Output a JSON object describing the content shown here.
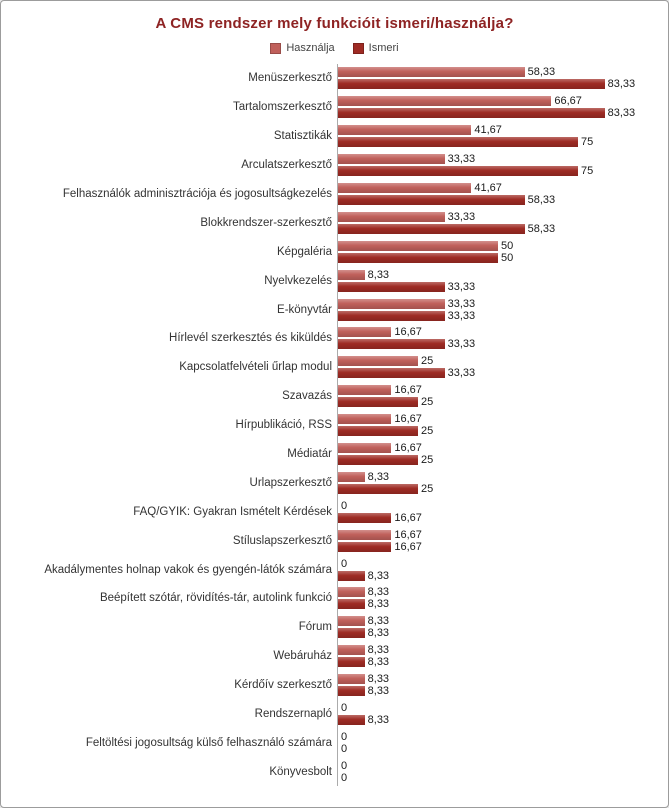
{
  "chart_data": {
    "type": "bar",
    "orientation": "horizontal",
    "title": "A CMS rendszer mely funkcióit ismeri/használja?",
    "title_color": "#8e2323",
    "legend_position": "top",
    "grid": false,
    "xlim": [
      0,
      100
    ],
    "axis_line_color": "#ababab",
    "categories": [
      "Menüszerkesztő",
      "Tartalomszerkesztő",
      "Statisztikák",
      "Arculatszerkesztő",
      "Felhasználók adminisztrációja  és jogosultságkezelés",
      "Blokkrendszer-szerkesztő",
      "Képgaléria",
      "Nyelvkezelés",
      "E-könyvtár",
      "Hírlevél szerkesztés és kiküldés",
      "Kapcsolatfelvételi űrlap modul",
      "Szavazás",
      "Hírpublikáció, RSS",
      "Médiatár",
      "Űrlapszerkesztő",
      "FAQ/GYIK: Gyakran Ismételt Kérdések",
      "Stíluslapszerkesztő",
      "Akadálymentes holnap vakok és gyengén-látók számára",
      "Beépített szótár, rövidítés-tár, autolink funkció",
      "Fórum",
      "Webáruház",
      "Kérdőív szerkesztő",
      "Rendszernapló",
      "Feltöltési jogosultság külső felhasználó számára",
      "Könyvesbolt"
    ],
    "series": [
      {
        "key": "hasznalja",
        "name": "Használja",
        "color": "#c0605b",
        "values": [
          58.33,
          66.67,
          41.67,
          33.33,
          41.67,
          33.33,
          50,
          8.33,
          33.33,
          16.67,
          25,
          16.67,
          16.67,
          16.67,
          8.33,
          0,
          16.67,
          0,
          8.33,
          8.33,
          8.33,
          8.33,
          0,
          0,
          0
        ],
        "labels": [
          "58,33",
          "66,67",
          "41,67",
          "33,33",
          "41,67",
          "33,33",
          "50",
          "8,33",
          "33,33",
          "16,67",
          "25",
          "16,67",
          "16,67",
          "16,67",
          "8,33",
          "0",
          "16,67",
          "0",
          "8,33",
          "8,33",
          "8,33",
          "8,33",
          "0",
          "0",
          "0"
        ]
      },
      {
        "key": "ismeri",
        "name": "Ismeri",
        "color": "#9e2b24",
        "values": [
          83.33,
          83.33,
          75,
          75,
          58.33,
          58.33,
          50,
          33.33,
          33.33,
          33.33,
          33.33,
          25,
          25,
          25,
          25,
          16.67,
          16.67,
          8.33,
          8.33,
          8.33,
          8.33,
          8.33,
          8.33,
          0,
          0
        ],
        "labels": [
          "83,33",
          "83,33",
          "75",
          "75",
          "58,33",
          "58,33",
          "50",
          "33,33",
          "33,33",
          "33,33",
          "33,33",
          "25",
          "25",
          "25",
          "25",
          "16,67",
          "16,67",
          "8,33",
          "8,33",
          "8,33",
          "8,33",
          "8,33",
          "8,33",
          "0",
          "0"
        ]
      }
    ]
  }
}
